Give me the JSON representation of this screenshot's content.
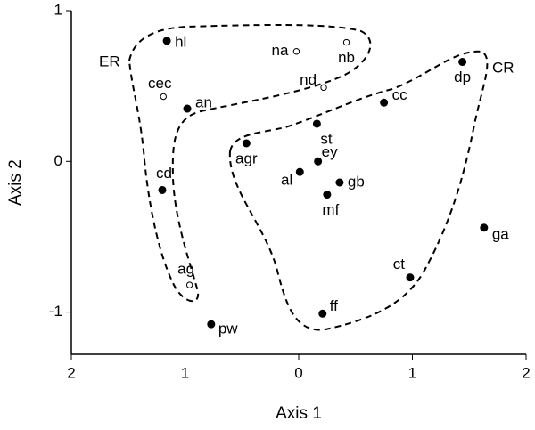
{
  "chart_data": {
    "type": "scatter",
    "x_label": "Axis 1",
    "y_label": "Axis 2",
    "xlim": [
      -2,
      2
    ],
    "ylim": [
      -1.28,
      1
    ],
    "xticks": [
      {
        "value": -2,
        "label": "2"
      },
      {
        "value": -1,
        "label": "1"
      },
      0,
      1,
      2
    ],
    "yticks": [
      -1,
      0,
      1
    ],
    "annotations": [
      "ER",
      "CR"
    ],
    "series": [
      {
        "marker": "filled",
        "color": "#000000",
        "labels": [
          "hl",
          "an",
          "cc",
          "dp",
          "st",
          "agr",
          "ey",
          "al",
          "gb",
          "mf",
          "cd",
          "ga",
          "ct",
          "ff",
          "pw"
        ],
        "x": [
          -1.16,
          -0.98,
          0.75,
          1.44,
          0.16,
          -0.46,
          0.17,
          0.01,
          0.36,
          0.25,
          -1.2,
          1.63,
          0.98,
          0.21,
          -0.77
        ],
        "y": [
          0.8,
          0.35,
          0.39,
          0.66,
          0.25,
          0.12,
          0,
          -0.07,
          -0.14,
          -0.22,
          -0.19,
          -0.44,
          -0.77,
          -1.01,
          -1.08
        ]
      },
      {
        "marker": "open",
        "color": "#000000",
        "labels": [
          "na",
          "nb",
          "nd",
          "cec",
          "ag"
        ],
        "x": [
          -0.02,
          0.42,
          0.22,
          -1.19,
          -0.96
        ],
        "y": [
          0.73,
          0.79,
          0.49,
          0.43,
          -0.82
        ]
      }
    ]
  }
}
